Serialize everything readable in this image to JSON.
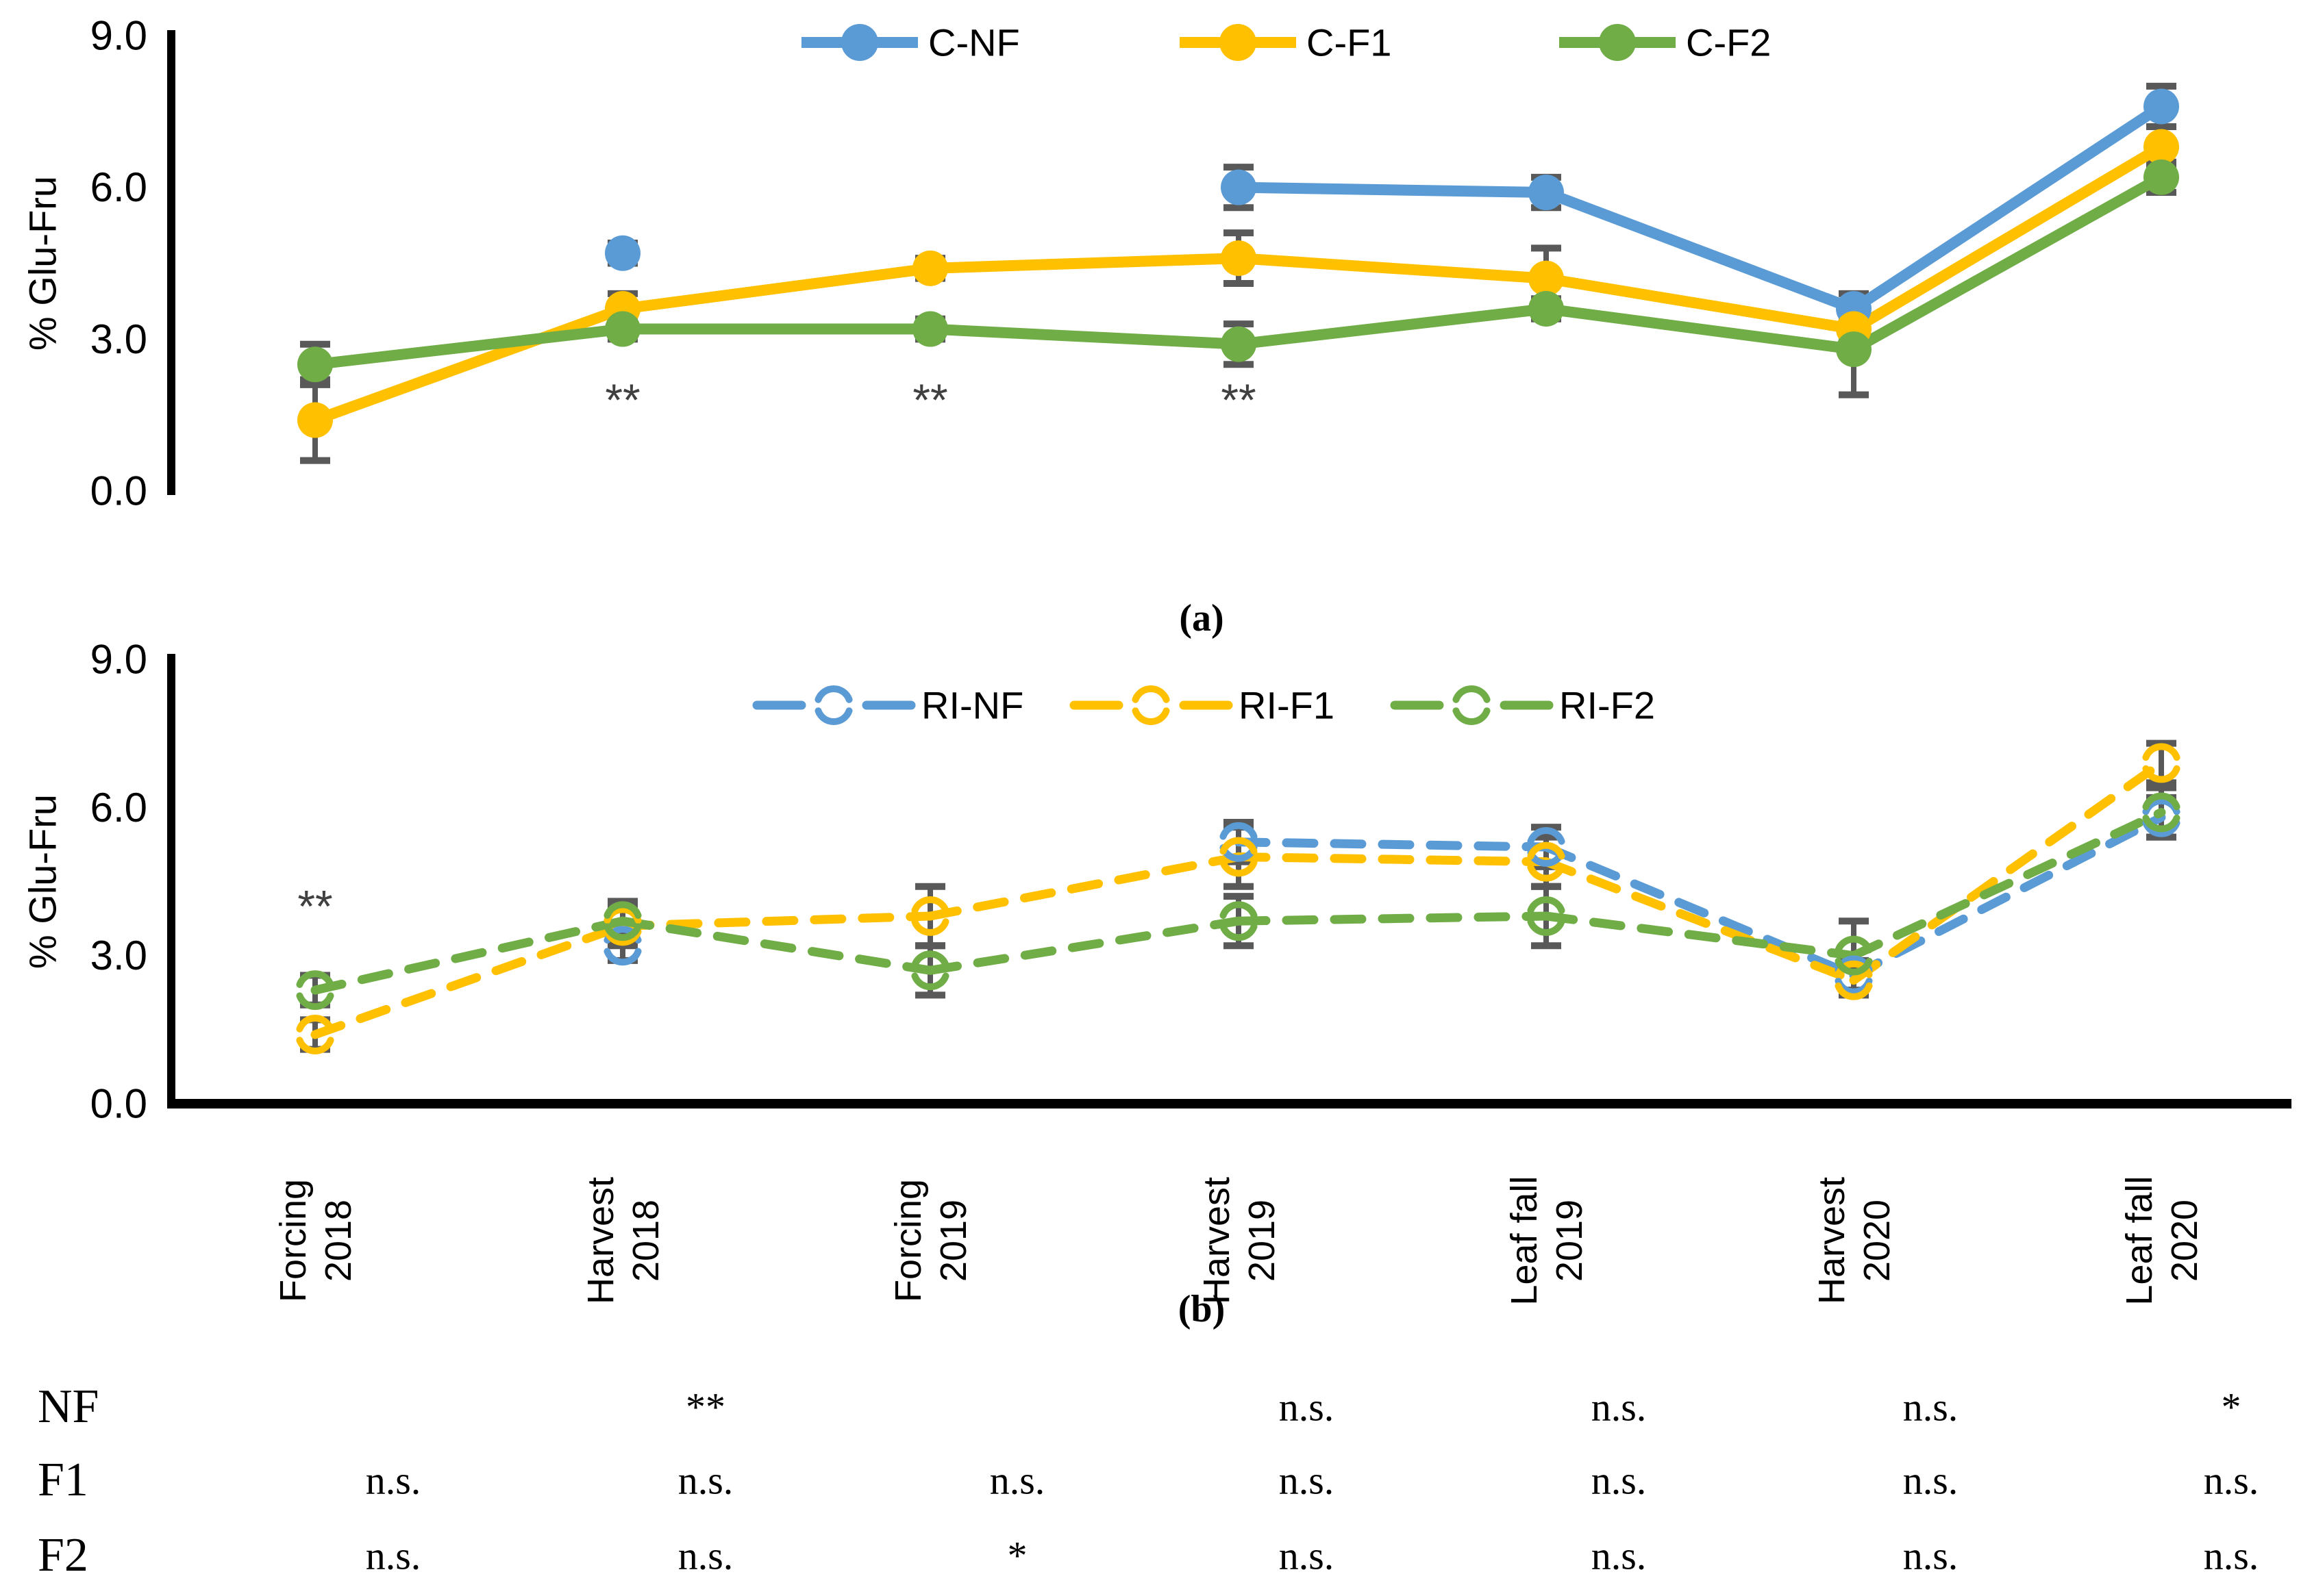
{
  "figure": {
    "captions": {
      "a": "(a)",
      "b": "(b)"
    },
    "ylabel": "% Glu-Fru",
    "colors": {
      "blue": "#5B9BD5",
      "yellow": "#FFC000",
      "green": "#70AD47",
      "error_bar": "#595959",
      "annotation": "#404040",
      "axis": "#000000"
    }
  },
  "chart_data": [
    {
      "id": "a",
      "type": "line",
      "caption": "(a)",
      "title": "",
      "xlabel": "",
      "ylabel": "% Glu-Fru",
      "ylim": [
        0,
        9
      ],
      "yticks": [
        9,
        6,
        3,
        0
      ],
      "ytick_labels": [
        "9.0",
        "6.0",
        "3.0",
        "0.0"
      ],
      "grid": false,
      "legend_position": "top",
      "marker_style": "filled-circle",
      "line_style": "solid",
      "categories": [
        "Forcing 2018",
        "Harvest 2018",
        "Forcing 2019",
        "Harvest 2019",
        "Leaf fall 2019",
        "Harvest 2020",
        "Leaf fall 2020"
      ],
      "series": [
        {
          "name": "C-NF",
          "color": "#5B9BD5",
          "values": [
            null,
            4.7,
            null,
            6.0,
            5.9,
            3.6,
            7.6
          ],
          "errors": [
            null,
            0.2,
            null,
            0.4,
            0.3,
            0.3,
            0.4
          ]
        },
        {
          "name": "C-F1",
          "color": "#FFC000",
          "values": [
            1.4,
            3.6,
            4.4,
            4.6,
            4.2,
            3.2,
            6.8
          ],
          "errors": [
            0.8,
            0.3,
            0.2,
            0.5,
            0.6,
            0.2,
            0.4
          ]
        },
        {
          "name": "C-F2",
          "color": "#70AD47",
          "values": [
            2.5,
            3.2,
            3.2,
            2.9,
            3.6,
            2.8,
            6.2
          ],
          "errors": [
            0.4,
            0.2,
            0.2,
            0.4,
            0.2,
            0.9,
            0.3
          ]
        }
      ],
      "annotations": [
        {
          "text": "**",
          "category_index": 1,
          "value": 1.8
        },
        {
          "text": "**",
          "category_index": 2,
          "value": 1.8
        },
        {
          "text": "**",
          "category_index": 3,
          "value": 1.8
        }
      ]
    },
    {
      "id": "b",
      "type": "line",
      "caption": "(b)",
      "title": "",
      "xlabel": "",
      "ylabel": "% Glu-Fru",
      "ylim": [
        0,
        9
      ],
      "yticks": [
        9,
        6,
        3,
        0
      ],
      "ytick_labels": [
        "9.0",
        "6.0",
        "3.0",
        "0.0"
      ],
      "grid": false,
      "legend_position": "top",
      "marker_style": "open-circular-arrows",
      "line_style": "dashed",
      "categories": [
        "Forcing 2018",
        "Harvest 2018",
        "Forcing 2019",
        "Harvest 2019",
        "Leaf fall 2019",
        "Harvest 2020",
        "Leaf fall 2020"
      ],
      "series": [
        {
          "name": "RI-NF",
          "color": "#5B9BD5",
          "values": [
            null,
            3.2,
            null,
            5.3,
            5.2,
            2.6,
            5.8
          ],
          "errors": [
            null,
            0.3,
            null,
            0.4,
            0.4,
            0.3,
            0.4
          ]
        },
        {
          "name": "RI-F1",
          "color": "#FFC000",
          "values": [
            1.4,
            3.6,
            3.8,
            5.0,
            4.9,
            2.5,
            6.9
          ],
          "errors": [
            0.3,
            0.4,
            0.6,
            0.6,
            0.5,
            0.3,
            0.4
          ]
        },
        {
          "name": "RI-F2",
          "color": "#70AD47",
          "values": [
            2.3,
            3.7,
            2.7,
            3.7,
            3.8,
            3.0,
            5.9
          ],
          "errors": [
            0.3,
            0.4,
            0.5,
            0.5,
            0.6,
            0.7,
            0.5
          ]
        }
      ],
      "annotations": [
        {
          "text": "**",
          "category_index": 0,
          "value": 4.0
        }
      ]
    }
  ],
  "significance_table": {
    "rows": [
      {
        "label": "NF",
        "cells": [
          "",
          "**",
          "",
          "n.s.",
          "n.s.",
          "n.s.",
          "*"
        ]
      },
      {
        "label": "F1",
        "cells": [
          "n.s.",
          "n.s.",
          "n.s.",
          "n.s.",
          "n.s.",
          "n.s.",
          "n.s."
        ]
      },
      {
        "label": "F2",
        "cells": [
          "n.s.",
          "n.s.",
          "*",
          "n.s.",
          "n.s.",
          "n.s.",
          "n.s."
        ]
      }
    ]
  }
}
